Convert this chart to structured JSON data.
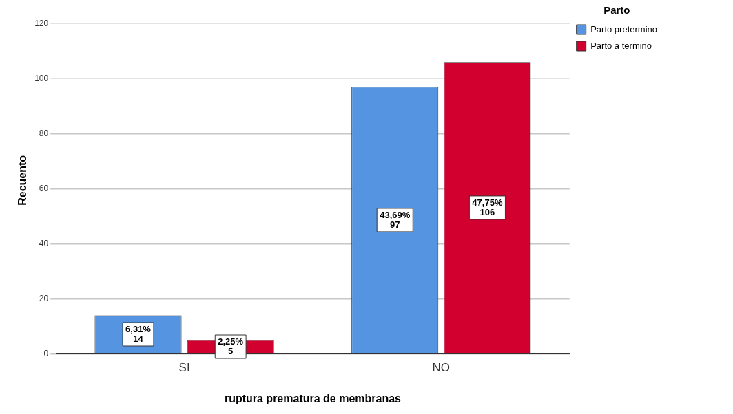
{
  "chart_data": {
    "type": "bar",
    "xlabel": "ruptura prematura de membranas",
    "ylabel": "Recuento",
    "legend_title": "Parto",
    "categories": [
      "SI",
      "NO"
    ],
    "series": [
      {
        "name": "Parto pretermino",
        "color": "#5594e0",
        "values": [
          14,
          97
        ],
        "value_labels": [
          "6,31%\n14",
          "43,69%\n97"
        ]
      },
      {
        "name": "Parto a termino",
        "color": "#d2002e",
        "values": [
          5,
          106
        ],
        "value_labels": [
          "2,25%\n5",
          "47,75%\n106"
        ]
      }
    ],
    "ylim": [
      0,
      126
    ],
    "yticks": [
      0,
      20,
      40,
      60,
      80,
      100,
      120
    ],
    "grid": "y",
    "legend": "top right"
  }
}
